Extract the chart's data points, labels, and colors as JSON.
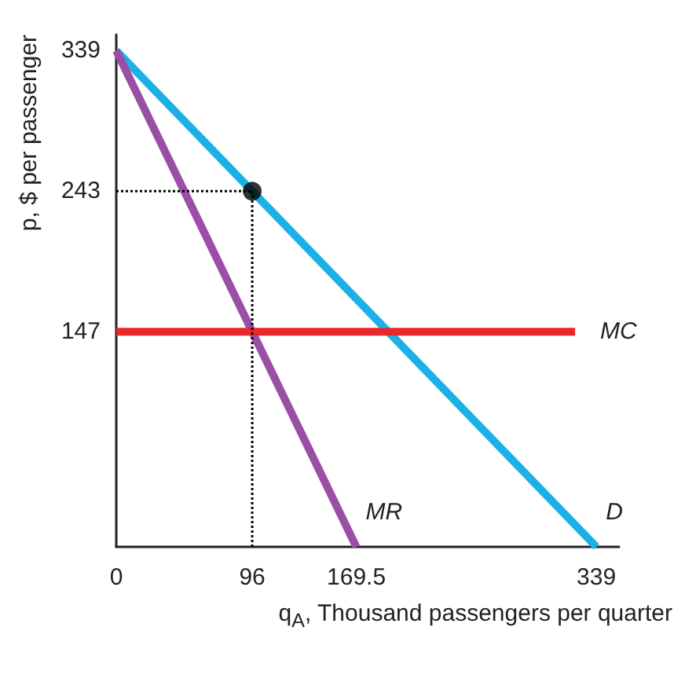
{
  "chart_data": {
    "type": "line",
    "xlabel": "q$_{A}$, Thousand passengers per quarter",
    "ylabel": "p, $ per passenger",
    "xlim": [
      0,
      355
    ],
    "ylim": [
      0,
      350
    ],
    "xticks": [
      0,
      96,
      169.5,
      339
    ],
    "yticks": [
      147,
      243,
      339
    ],
    "grid": false,
    "legend": false,
    "marker": "none",
    "line_style": "solid",
    "series": [
      {
        "name": "D",
        "color": "#1cb1e6",
        "x": [
          0,
          339
        ],
        "values": [
          339,
          0
        ]
      },
      {
        "name": "MR",
        "color": "#9b4ea6",
        "x": [
          0,
          169.5
        ],
        "values": [
          339,
          0
        ]
      },
      {
        "name": "MC",
        "color": "#e8282b",
        "x": [
          0,
          324
        ],
        "values": [
          147,
          147
        ]
      },
      {
        "color": "#000000",
        "x": [
          0,
          96
        ],
        "values": [
          243,
          243
        ],
        "line_style": "dotted"
      },
      {
        "color": "#000000",
        "x": [
          96,
          96
        ],
        "values": [
          0,
          243
        ],
        "line_style": "dotted"
      },
      {
        "type": "scatter",
        "color": "#000000",
        "x": [
          96
        ],
        "values": [
          243
        ],
        "marker": "circle"
      }
    ]
  }
}
